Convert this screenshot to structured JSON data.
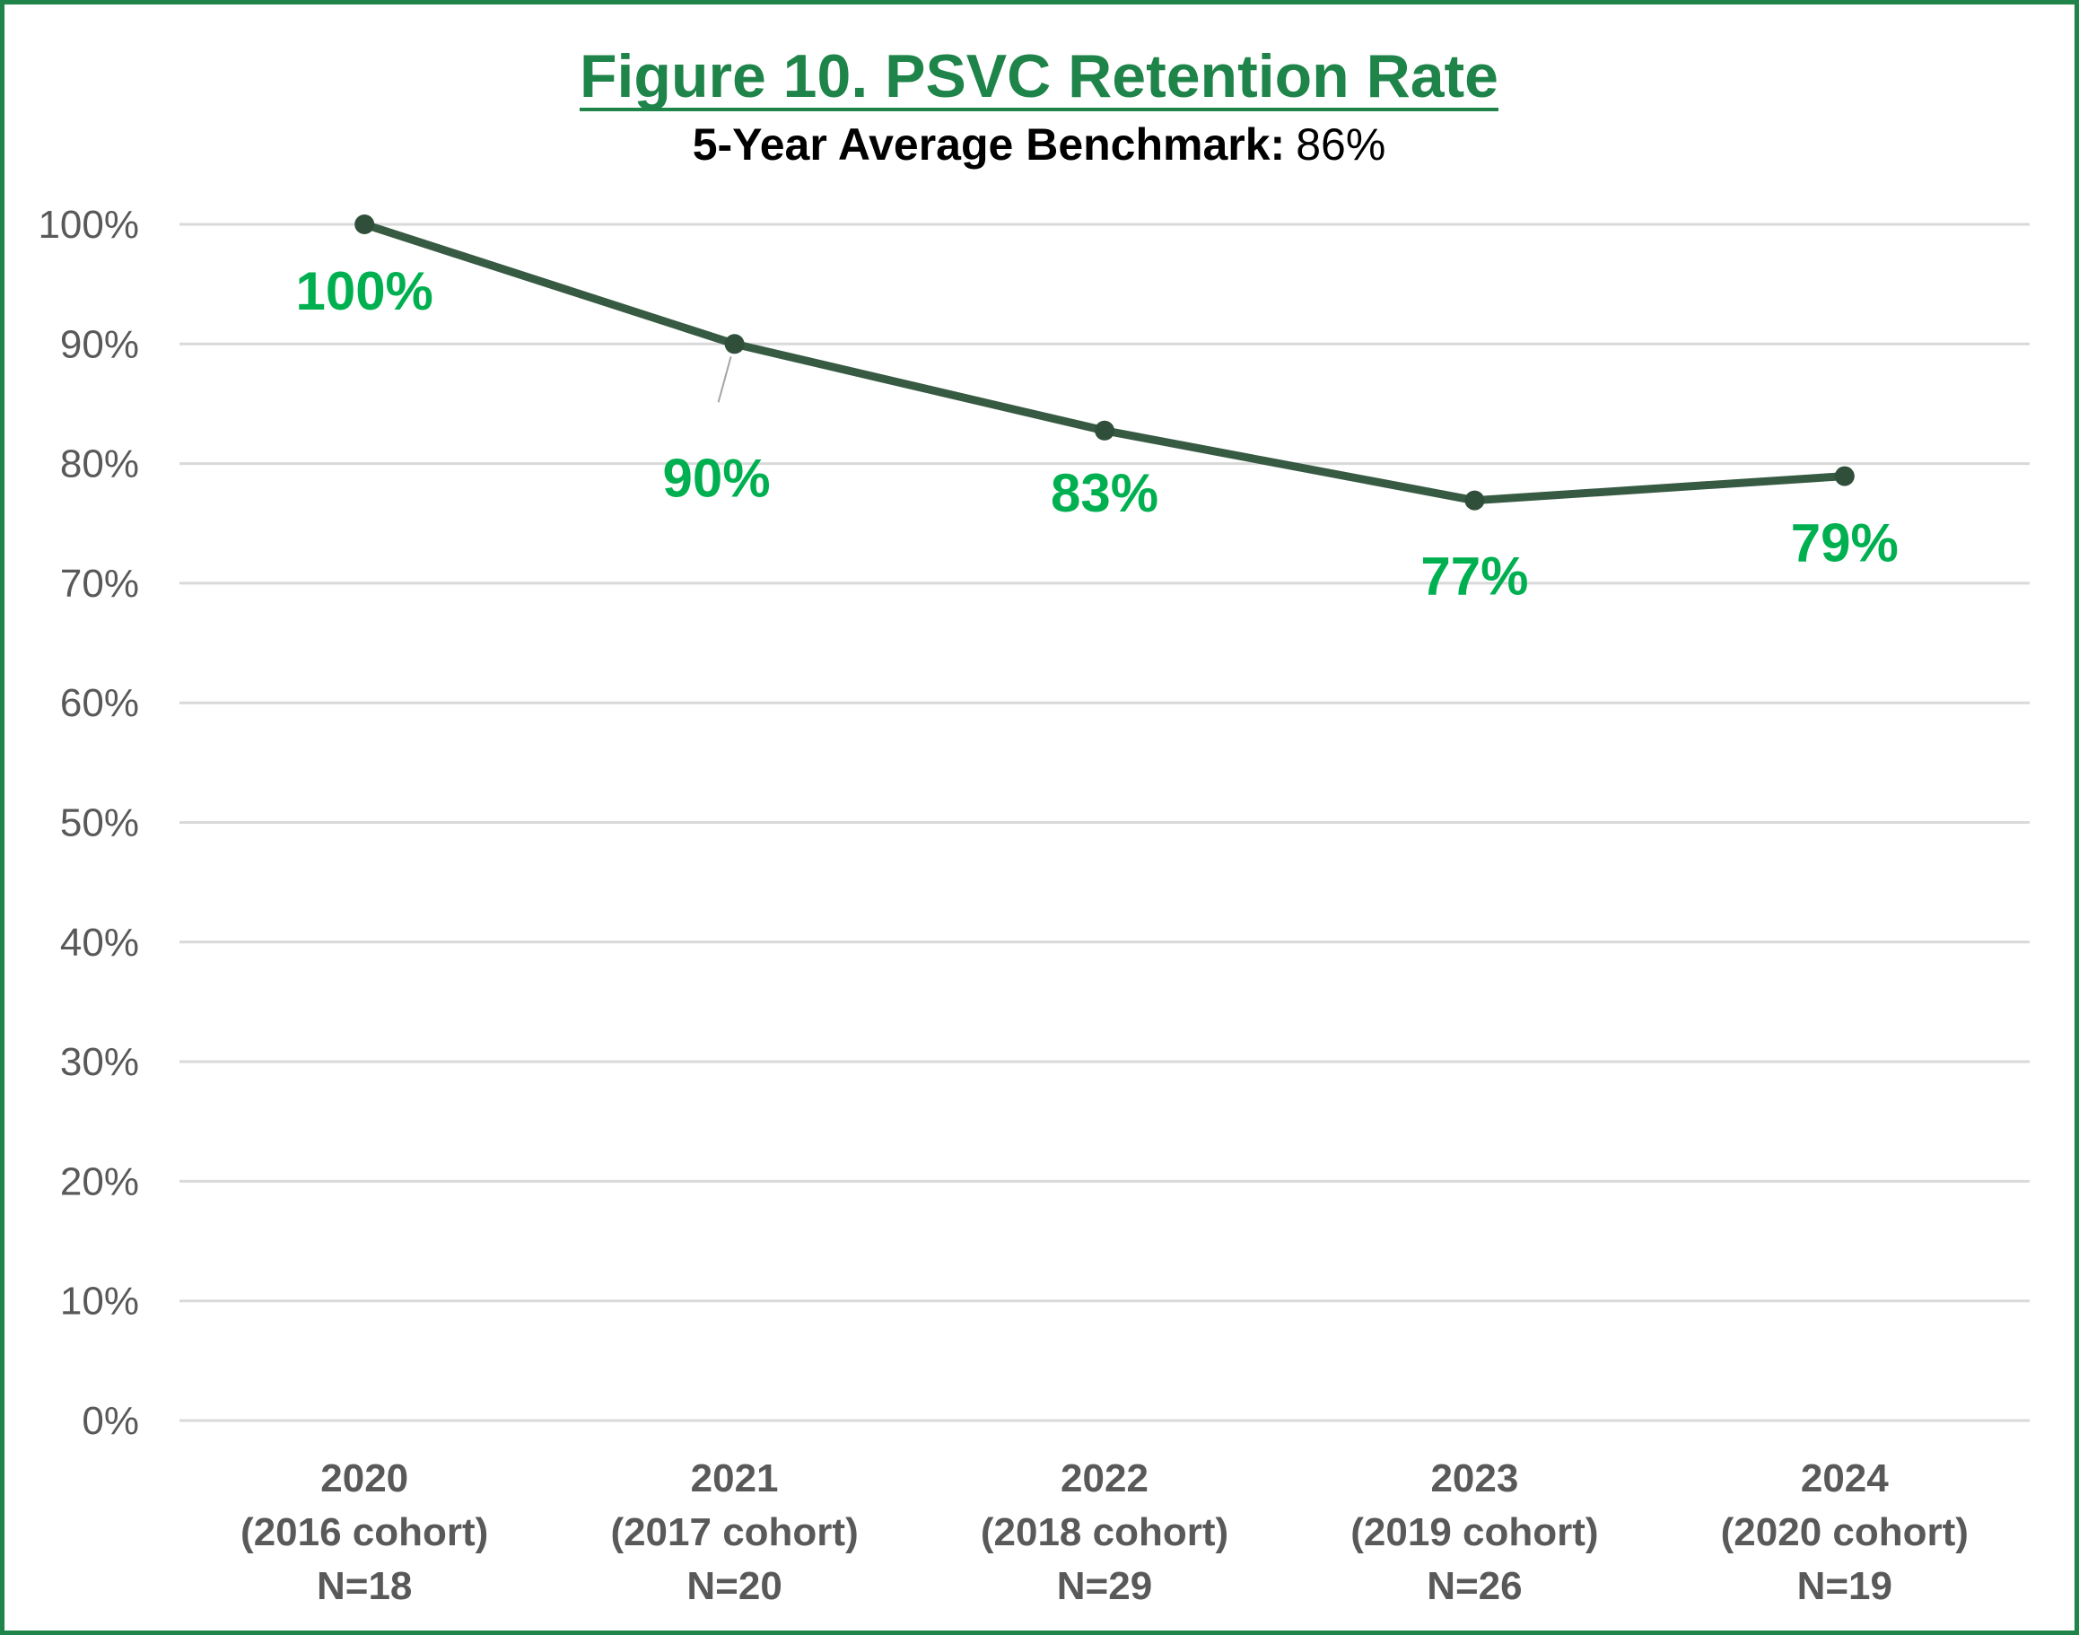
{
  "chart_data": {
    "type": "line",
    "title": "Figure 10. PSVC Retention Rate",
    "subtitle_label": "5-Year Average Benchmark:",
    "subtitle_value": "86%",
    "categories": [
      {
        "year": "2020",
        "cohort": "(2016 cohort)",
        "n": "N=18"
      },
      {
        "year": "2021",
        "cohort": "(2017 cohort)",
        "n": "N=20"
      },
      {
        "year": "2022",
        "cohort": "(2018 cohort)",
        "n": "N=29"
      },
      {
        "year": "2023",
        "cohort": "(2019 cohort)",
        "n": "N=26"
      },
      {
        "year": "2024",
        "cohort": "(2020 cohort)",
        "n": "N=19"
      }
    ],
    "values": [
      100,
      90,
      82.76,
      76.92,
      78.95
    ],
    "data_labels": [
      "100%",
      "90%",
      "83%",
      "77%",
      "79%"
    ],
    "ylim": [
      0,
      100
    ],
    "yticks": [
      0,
      10,
      20,
      30,
      40,
      50,
      60,
      70,
      80,
      90,
      100
    ],
    "ytick_labels": [
      "0%",
      "10%",
      "20%",
      "30%",
      "40%",
      "50%",
      "60%",
      "70%",
      "80%",
      "90%",
      "100%"
    ],
    "grid": true,
    "xlabel": "",
    "ylabel": "",
    "colors": {
      "line": "#375a43",
      "marker": "#2f4f3a",
      "label": "#00b050",
      "title": "#1e8449",
      "frame": "#1e8449",
      "grid": "#d9d9d9",
      "tick": "#595959",
      "leader": "#a6a6a6"
    }
  }
}
